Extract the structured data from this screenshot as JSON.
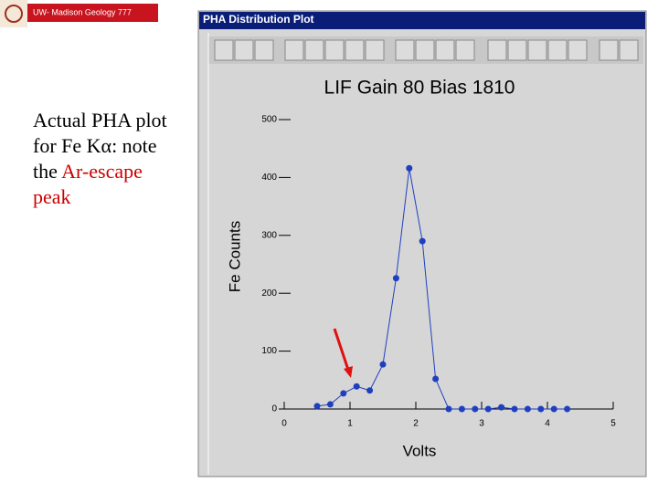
{
  "header": {
    "title": "UW- Madison Geology  777"
  },
  "slide": {
    "body": [
      {
        "text": "Actual PHA plot for Fe Kα: note the ",
        "color": "#000000"
      },
      {
        "text": "Ar-escape peak",
        "color": "#cc0000"
      }
    ]
  },
  "window": {
    "title": "PHA Distribution Plot"
  },
  "chart_data": {
    "type": "line",
    "title": "LIF Gain 80 Bias 1810",
    "x_label": "Volts",
    "y_label": "Fe Counts",
    "x": [
      0.5,
      0.7,
      0.9,
      1.1,
      1.3,
      1.5,
      1.7,
      1.9,
      2.1,
      2.3,
      2.5,
      2.7,
      2.9,
      3.1,
      3.3,
      3.5,
      3.7,
      3.9,
      4.1,
      4.3
    ],
    "values": [
      5,
      8,
      27,
      39,
      32,
      77,
      226,
      416,
      290,
      52,
      0,
      0,
      0,
      0,
      3,
      0,
      0,
      0,
      0,
      0
    ],
    "color": "#1f3fbf",
    "xlim": [
      0,
      5
    ],
    "xticks": [
      0,
      1,
      2,
      3,
      4,
      5
    ],
    "ylim": [
      0,
      500
    ],
    "yticks": [
      0,
      100,
      200,
      300,
      400,
      500
    ]
  }
}
